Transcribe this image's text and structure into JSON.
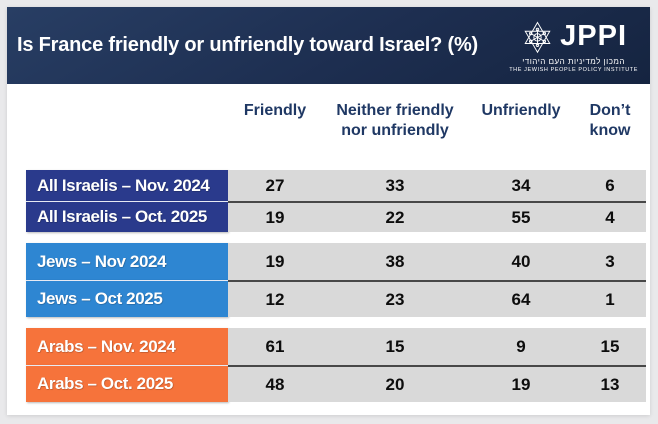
{
  "header": {
    "title": "Is France friendly or unfriendly toward Israel? (%)",
    "logo": {
      "name": "JPPI",
      "hebrew": "המכון למדיניות העם היהודי",
      "english": "THE JEWISH PEOPLE POLICY INSTITUTE"
    },
    "colors": {
      "bar_top": "#283e64",
      "bar_bottom": "#152440"
    }
  },
  "table": {
    "columns": [
      "Friendly",
      "Neither friendly nor unfriendly",
      "Unfriendly",
      "Don’t know"
    ],
    "groups": [
      {
        "name": "all-israelis",
        "color": "#2A3A8C",
        "rows": [
          {
            "label": "All Israelis – Nov. 2024",
            "values": [
              27,
              33,
              34,
              6
            ]
          },
          {
            "label": "All Israelis – Oct. 2025",
            "values": [
              19,
              22,
              55,
              4
            ]
          }
        ]
      },
      {
        "name": "jews",
        "color": "#2E86D2",
        "rows": [
          {
            "label": "Jews – Nov 2024",
            "values": [
              19,
              38,
              40,
              3
            ]
          },
          {
            "label": "Jews – Oct 2025",
            "values": [
              12,
              23,
              64,
              1
            ]
          }
        ]
      },
      {
        "name": "arabs",
        "color": "#F6733B",
        "rows": [
          {
            "label": "Arabs – Nov. 2024",
            "values": [
              61,
              15,
              9,
              15
            ]
          },
          {
            "label": "Arabs – Oct. 2025",
            "values": [
              48,
              20,
              19,
              13
            ]
          }
        ]
      }
    ],
    "cell_background": "#D9D9D9",
    "header_text_color": "#1F3864"
  },
  "chart_data": {
    "type": "table",
    "title": "Is France friendly or unfriendly toward Israel? (%)",
    "columns": [
      "Friendly",
      "Neither friendly nor unfriendly",
      "Unfriendly",
      "Don’t know"
    ],
    "rows": [
      {
        "label": "All Israelis – Nov. 2024",
        "values": [
          27,
          33,
          34,
          6
        ]
      },
      {
        "label": "All Israelis – Oct. 2025",
        "values": [
          19,
          22,
          55,
          4
        ]
      },
      {
        "label": "Jews – Nov 2024",
        "values": [
          19,
          38,
          40,
          3
        ]
      },
      {
        "label": "Jews – Oct 2025",
        "values": [
          12,
          23,
          64,
          1
        ]
      },
      {
        "label": "Arabs – Nov. 2024",
        "values": [
          61,
          15,
          9,
          15
        ]
      },
      {
        "label": "Arabs – Oct. 2025",
        "values": [
          48,
          20,
          19,
          13
        ]
      }
    ],
    "units": "percent",
    "source": "JPPI"
  }
}
